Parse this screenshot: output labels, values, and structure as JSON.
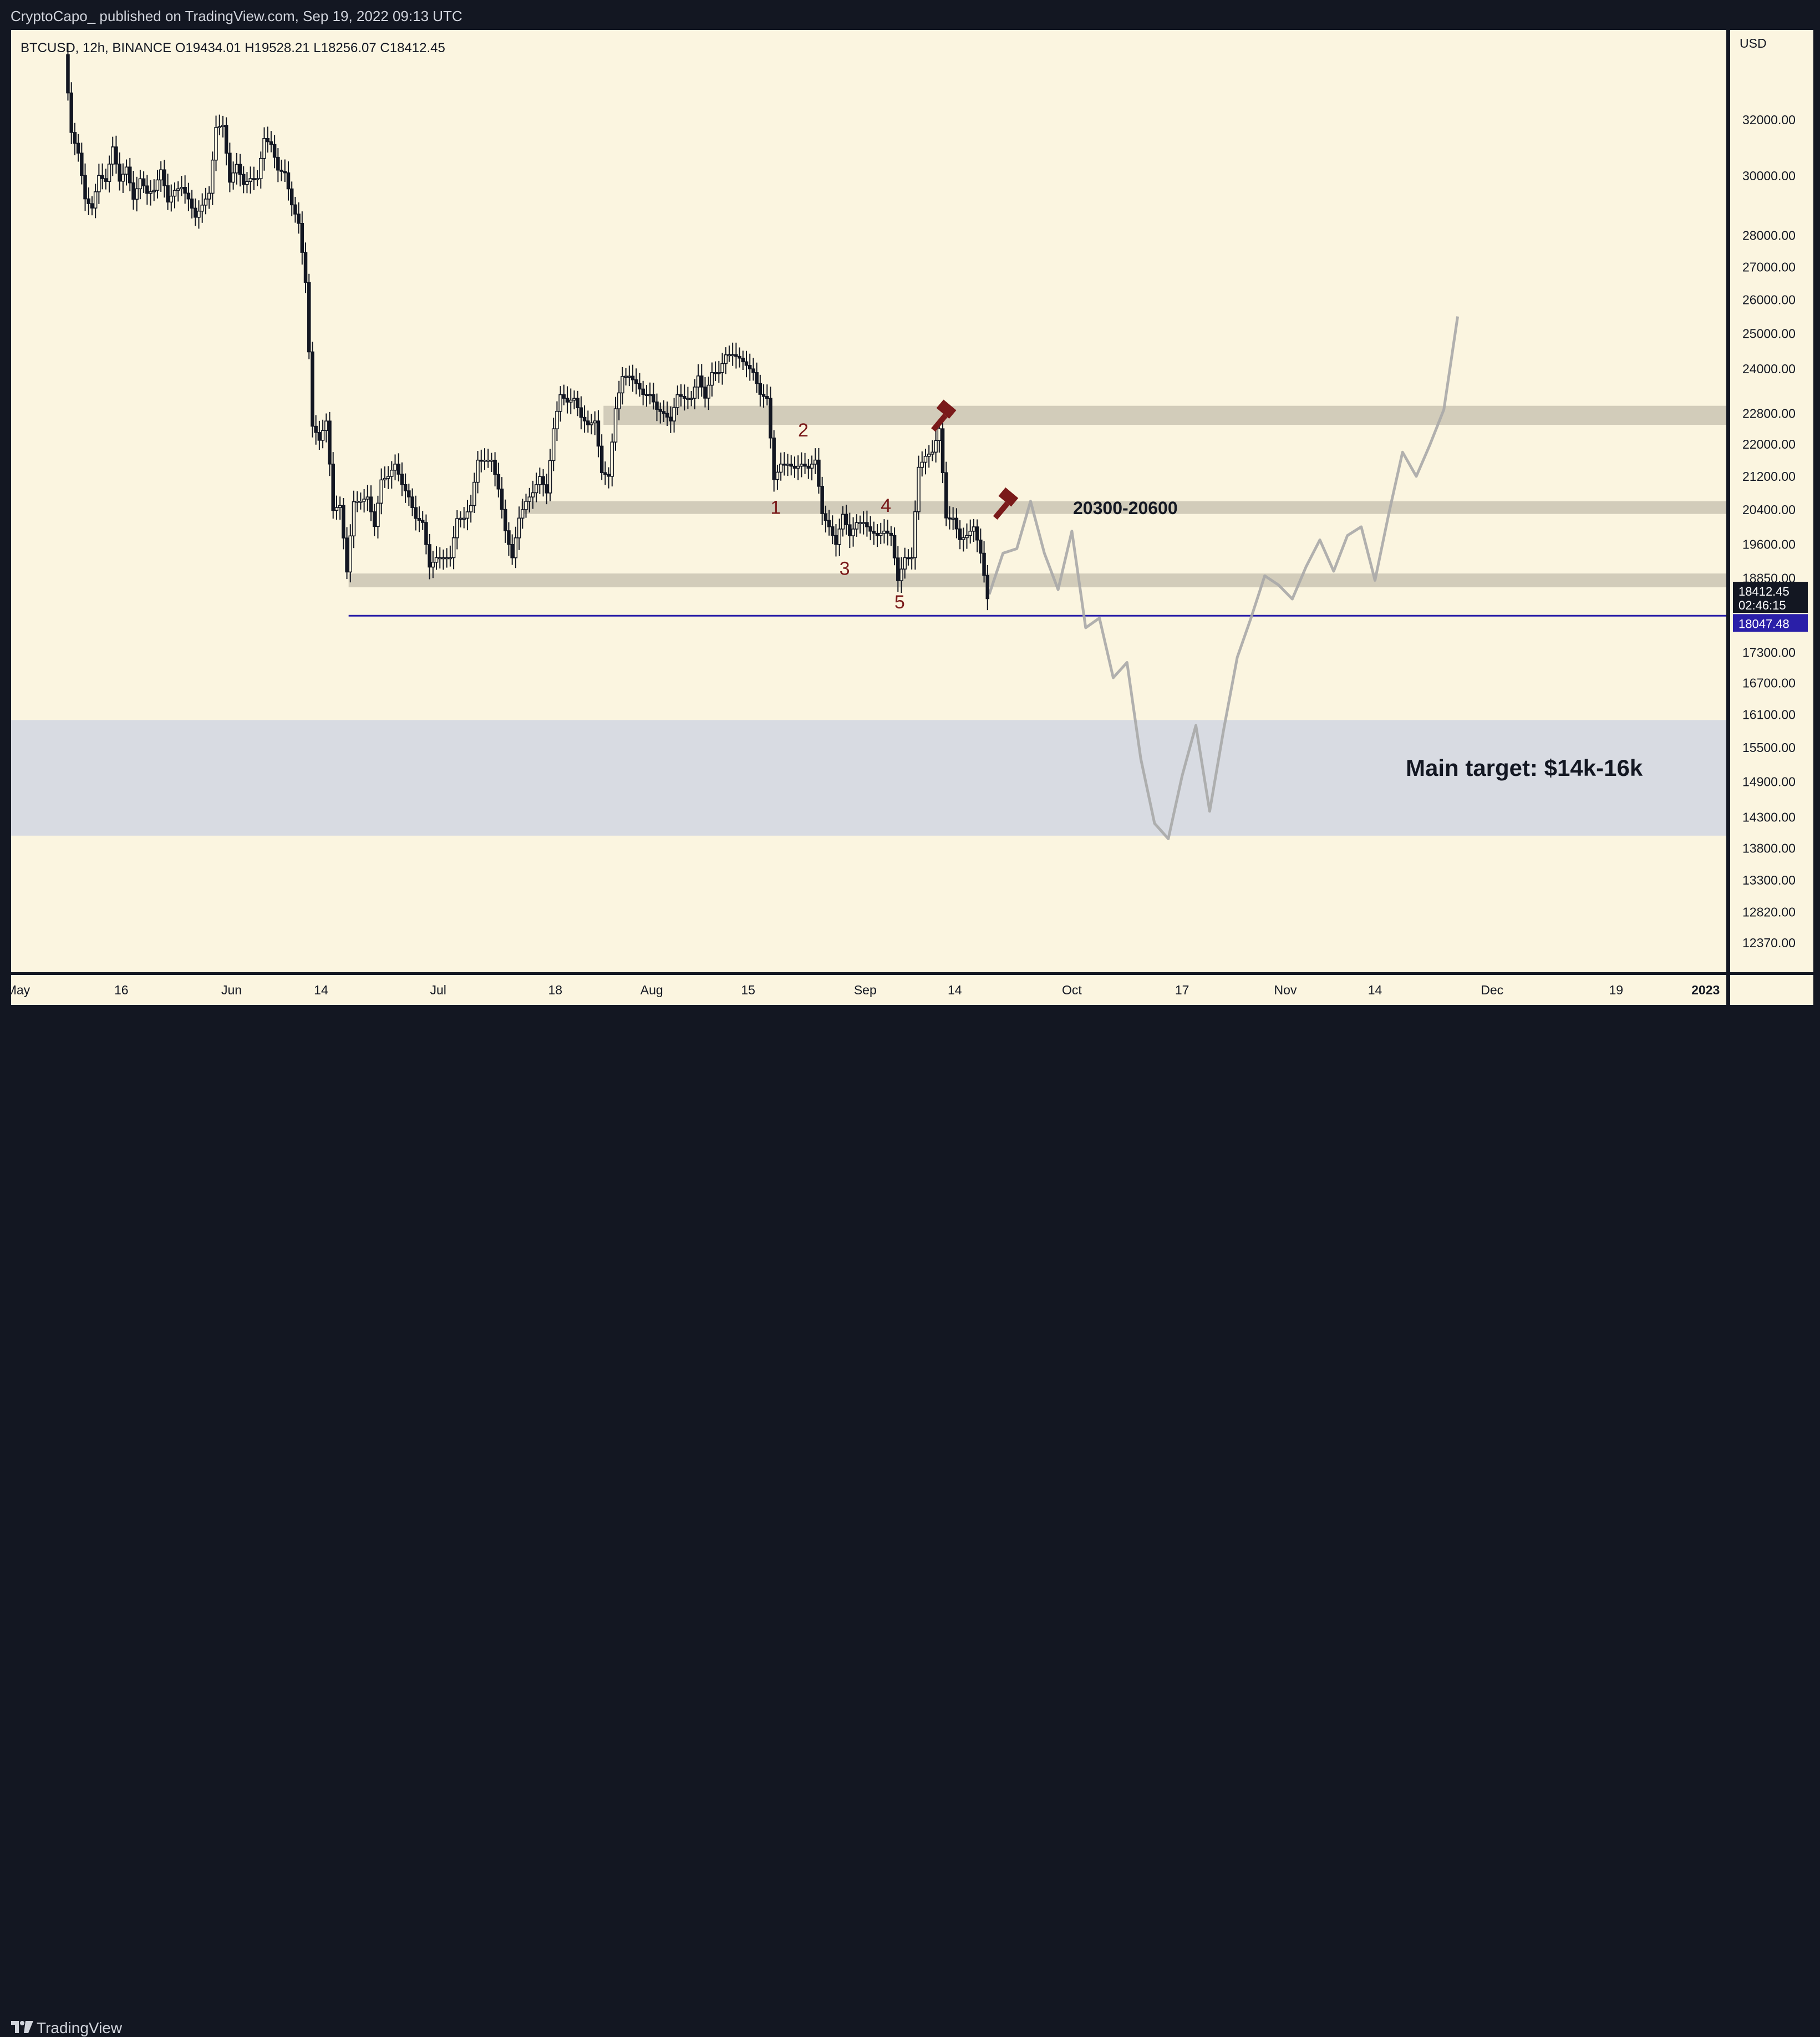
{
  "header": {
    "publisher_line": "CryptoCapo_ published on TradingView.com, Sep 19, 2022 09:13 UTC"
  },
  "footer": {
    "brand": "TradingView"
  },
  "colors": {
    "background": "#fbf5e0",
    "zone_gray": "#d2ccba",
    "target_zone": "#d8dbe2",
    "support_line": "#2a1fa8",
    "candle": "#131722",
    "projection": "#a9a9a9",
    "wave_label": "#7a1a1a",
    "hammer": "#7a1a1a",
    "price_badge": "#131722",
    "support_badge": "#2a1fa8"
  },
  "chart_data": {
    "type": "candlestick",
    "symbol_line": "BTCUSD, 12h, BINANCE  O19434.01  H19528.21  L18256.07  C18412.45",
    "currency_label": "USD",
    "y_scale": "log",
    "ylim": [
      11950,
      35500
    ],
    "xlim": [
      "2022-04-30",
      "2023-01-04"
    ],
    "y_ticks": [
      32000,
      30000,
      28000,
      27000,
      26000,
      25000,
      24000,
      22800,
      22000,
      21200,
      20400,
      19600,
      18850,
      17300,
      16700,
      16100,
      15500,
      14900,
      14300,
      13800,
      13300,
      12820,
      12370
    ],
    "y_tick_labels": [
      "32000.00",
      "30000.00",
      "28000.00",
      "27000.00",
      "26000.00",
      "25000.00",
      "24000.00",
      "22800.00",
      "22000.00",
      "21200.00",
      "20400.00",
      "19600.00",
      "18850.00",
      "17300.00",
      "16700.00",
      "16100.00",
      "15500.00",
      "14900.00",
      "14300.00",
      "13800.00",
      "13300.00",
      "12820.00",
      "12370.00"
    ],
    "x_ticks": [
      {
        "date": "2022-05-01",
        "label": "May"
      },
      {
        "date": "2022-05-16",
        "label": "16"
      },
      {
        "date": "2022-06-01",
        "label": "Jun"
      },
      {
        "date": "2022-06-14",
        "label": "14"
      },
      {
        "date": "2022-07-01",
        "label": "Jul"
      },
      {
        "date": "2022-07-18",
        "label": "18"
      },
      {
        "date": "2022-08-01",
        "label": "Aug"
      },
      {
        "date": "2022-08-15",
        "label": "15"
      },
      {
        "date": "2022-09-01",
        "label": "Sep"
      },
      {
        "date": "2022-09-14",
        "label": "14"
      },
      {
        "date": "2022-10-01",
        "label": "Oct"
      },
      {
        "date": "2022-10-17",
        "label": "17"
      },
      {
        "date": "2022-11-01",
        "label": "Nov"
      },
      {
        "date": "2022-11-14",
        "label": "14"
      },
      {
        "date": "2022-12-01",
        "label": "Dec"
      },
      {
        "date": "2022-12-19",
        "label": "19"
      },
      {
        "date": "2023-01-01",
        "label": "2023"
      }
    ],
    "price_path": [
      [
        "2022-05-08",
        34500
      ],
      [
        "2022-05-09",
        31500
      ],
      [
        "2022-05-10",
        30800
      ],
      [
        "2022-05-11",
        29200
      ],
      [
        "2022-05-12",
        28900
      ],
      [
        "2022-05-13",
        30000
      ],
      [
        "2022-05-14",
        29800
      ],
      [
        "2022-05-15",
        31000
      ],
      [
        "2022-05-16",
        29800
      ],
      [
        "2022-05-17",
        30300
      ],
      [
        "2022-05-18",
        29200
      ],
      [
        "2022-05-19",
        29900
      ],
      [
        "2022-05-20",
        29400
      ],
      [
        "2022-05-21",
        29500
      ],
      [
        "2022-05-22",
        30200
      ],
      [
        "2022-05-23",
        29100
      ],
      [
        "2022-05-24",
        29500
      ],
      [
        "2022-05-25",
        29600
      ],
      [
        "2022-05-26",
        29200
      ],
      [
        "2022-05-27",
        28600
      ],
      [
        "2022-05-28",
        29000
      ],
      [
        "2022-05-29",
        29400
      ],
      [
        "2022-05-30",
        31700
      ],
      [
        "2022-05-31",
        31800
      ],
      [
        "2022-06-01",
        29800
      ],
      [
        "2022-06-02",
        30400
      ],
      [
        "2022-06-03",
        29700
      ],
      [
        "2022-06-04",
        29900
      ],
      [
        "2022-06-05",
        29900
      ],
      [
        "2022-06-06",
        31300
      ],
      [
        "2022-06-07",
        31100
      ],
      [
        "2022-06-08",
        30200
      ],
      [
        "2022-06-09",
        30100
      ],
      [
        "2022-06-10",
        29000
      ],
      [
        "2022-06-11",
        28400
      ],
      [
        "2022-06-12",
        26500
      ],
      [
        "2022-06-13",
        22500
      ],
      [
        "2022-06-14",
        22100
      ],
      [
        "2022-06-15",
        22600
      ],
      [
        "2022-06-16",
        20400
      ],
      [
        "2022-06-17",
        20500
      ],
      [
        "2022-06-18",
        19000
      ],
      [
        "2022-06-19",
        20600
      ],
      [
        "2022-06-20",
        20600
      ],
      [
        "2022-06-21",
        20700
      ],
      [
        "2022-06-22",
        20000
      ],
      [
        "2022-06-23",
        21100
      ],
      [
        "2022-06-24",
        21200
      ],
      [
        "2022-06-25",
        21500
      ],
      [
        "2022-06-26",
        21000
      ],
      [
        "2022-06-27",
        20700
      ],
      [
        "2022-06-28",
        20200
      ],
      [
        "2022-06-29",
        20100
      ],
      [
        "2022-06-30",
        19100
      ],
      [
        "2022-07-01",
        19300
      ],
      [
        "2022-07-02",
        19300
      ],
      [
        "2022-07-03",
        19300
      ],
      [
        "2022-07-04",
        20200
      ],
      [
        "2022-07-05",
        20200
      ],
      [
        "2022-07-06",
        20500
      ],
      [
        "2022-07-07",
        21600
      ],
      [
        "2022-07-08",
        21600
      ],
      [
        "2022-07-09",
        21600
      ],
      [
        "2022-07-10",
        20900
      ],
      [
        "2022-07-11",
        19900
      ],
      [
        "2022-07-12",
        19300
      ],
      [
        "2022-07-13",
        20200
      ],
      [
        "2022-07-14",
        20600
      ],
      [
        "2022-07-15",
        20800
      ],
      [
        "2022-07-16",
        21200
      ],
      [
        "2022-07-17",
        20800
      ],
      [
        "2022-07-18",
        22400
      ],
      [
        "2022-07-19",
        23300
      ],
      [
        "2022-07-20",
        23100
      ],
      [
        "2022-07-21",
        23200
      ],
      [
        "2022-07-22",
        22700
      ],
      [
        "2022-07-23",
        22500
      ],
      [
        "2022-07-24",
        22600
      ],
      [
        "2022-07-25",
        21300
      ],
      [
        "2022-07-26",
        21200
      ],
      [
        "2022-07-27",
        22900
      ],
      [
        "2022-07-28",
        23800
      ],
      [
        "2022-07-29",
        23800
      ],
      [
        "2022-07-30",
        23600
      ],
      [
        "2022-07-31",
        23300
      ],
      [
        "2022-08-01",
        23300
      ],
      [
        "2022-08-02",
        22900
      ],
      [
        "2022-08-03",
        22800
      ],
      [
        "2022-08-04",
        22600
      ],
      [
        "2022-08-05",
        23300
      ],
      [
        "2022-08-06",
        23200
      ],
      [
        "2022-08-07",
        23200
      ],
      [
        "2022-08-08",
        23800
      ],
      [
        "2022-08-09",
        23200
      ],
      [
        "2022-08-10",
        23900
      ],
      [
        "2022-08-11",
        23900
      ],
      [
        "2022-08-12",
        24400
      ],
      [
        "2022-08-13",
        24400
      ],
      [
        "2022-08-14",
        24300
      ],
      [
        "2022-08-15",
        24100
      ],
      [
        "2022-08-16",
        23900
      ],
      [
        "2022-08-17",
        23300
      ],
      [
        "2022-08-18",
        23200
      ],
      [
        "2022-08-19",
        21100
      ],
      [
        "2022-08-20",
        21500
      ],
      [
        "2022-08-21",
        21500
      ],
      [
        "2022-08-22",
        21400
      ],
      [
        "2022-08-23",
        21500
      ],
      [
        "2022-08-24",
        21400
      ],
      [
        "2022-08-25",
        21600
      ],
      [
        "2022-08-26",
        20300
      ],
      [
        "2022-08-27",
        20000
      ],
      [
        "2022-08-28",
        19600
      ],
      [
        "2022-08-29",
        20300
      ],
      [
        "2022-08-30",
        19800
      ],
      [
        "2022-08-31",
        20100
      ],
      [
        "2022-09-01",
        20100
      ],
      [
        "2022-09-02",
        19900
      ],
      [
        "2022-09-03",
        19800
      ],
      [
        "2022-09-04",
        19900
      ],
      [
        "2022-09-05",
        19800
      ],
      [
        "2022-09-06",
        18800
      ],
      [
        "2022-09-07",
        19300
      ],
      [
        "2022-09-08",
        19300
      ],
      [
        "2022-09-09",
        21400
      ],
      [
        "2022-09-10",
        21700
      ],
      [
        "2022-09-11",
        21800
      ],
      [
        "2022-09-12",
        22400
      ],
      [
        "2022-09-13",
        20200
      ],
      [
        "2022-09-14",
        20200
      ],
      [
        "2022-09-15",
        19700
      ],
      [
        "2022-09-16",
        19800
      ],
      [
        "2022-09-17",
        20000
      ],
      [
        "2022-09-18",
        19400
      ],
      [
        "2022-09-19",
        18412
      ]
    ],
    "projection_path": [
      [
        "2022-09-19",
        18500
      ],
      [
        "2022-09-21",
        19400
      ],
      [
        "2022-09-23",
        19500
      ],
      [
        "2022-09-25",
        20600
      ],
      [
        "2022-09-27",
        19400
      ],
      [
        "2022-09-29",
        18600
      ],
      [
        "2022-10-01",
        19900
      ],
      [
        "2022-10-03",
        17800
      ],
      [
        "2022-10-05",
        18000
      ],
      [
        "2022-10-07",
        16800
      ],
      [
        "2022-10-09",
        17100
      ],
      [
        "2022-10-11",
        15300
      ],
      [
        "2022-10-13",
        14200
      ],
      [
        "2022-10-15",
        13950
      ],
      [
        "2022-10-17",
        15000
      ],
      [
        "2022-10-19",
        15900
      ],
      [
        "2022-10-21",
        14400
      ],
      [
        "2022-10-23",
        15800
      ],
      [
        "2022-10-25",
        17200
      ],
      [
        "2022-10-27",
        18000
      ],
      [
        "2022-10-29",
        18900
      ],
      [
        "2022-10-31",
        18700
      ],
      [
        "2022-11-02",
        18400
      ],
      [
        "2022-11-04",
        19100
      ],
      [
        "2022-11-06",
        19700
      ],
      [
        "2022-11-08",
        19000
      ],
      [
        "2022-11-10",
        19800
      ],
      [
        "2022-11-12",
        20000
      ],
      [
        "2022-11-14",
        18800
      ],
      [
        "2022-11-16",
        20300
      ],
      [
        "2022-11-18",
        21800
      ],
      [
        "2022-11-20",
        21200
      ],
      [
        "2022-11-22",
        22000
      ],
      [
        "2022-11-24",
        22900
      ],
      [
        "2022-11-26",
        25500
      ]
    ],
    "zones": [
      {
        "low": 22500,
        "high": 23000,
        "span": "from_2022-07-25"
      },
      {
        "low": 20300,
        "high": 20600,
        "span": "from_2022-07-13",
        "label": "20300-20600"
      },
      {
        "low": 18650,
        "high": 18950,
        "span": "from_2022-06-18"
      },
      {
        "low": 14000,
        "high": 16000,
        "span": "full",
        "label": "Main target: $14k-16k"
      }
    ],
    "support_level": {
      "value": 18047.48,
      "label": "18047.48",
      "from": "2022-06-18"
    },
    "wave_labels": [
      {
        "text": "1",
        "date": "2022-08-19",
        "price": 20300
      },
      {
        "text": "2",
        "date": "2022-08-23",
        "price": 22200
      },
      {
        "text": "3",
        "date": "2022-08-29",
        "price": 18920
      },
      {
        "text": "4",
        "date": "2022-09-04",
        "price": 20350
      },
      {
        "text": "5",
        "date": "2022-09-06",
        "price": 18200
      }
    ],
    "hammers": [
      {
        "date": "2022-09-13",
        "price": 22800
      },
      {
        "date": "2022-09-22",
        "price": 20600
      }
    ],
    "last_price": {
      "value": "18412.45",
      "countdown": "02:46:15"
    }
  }
}
